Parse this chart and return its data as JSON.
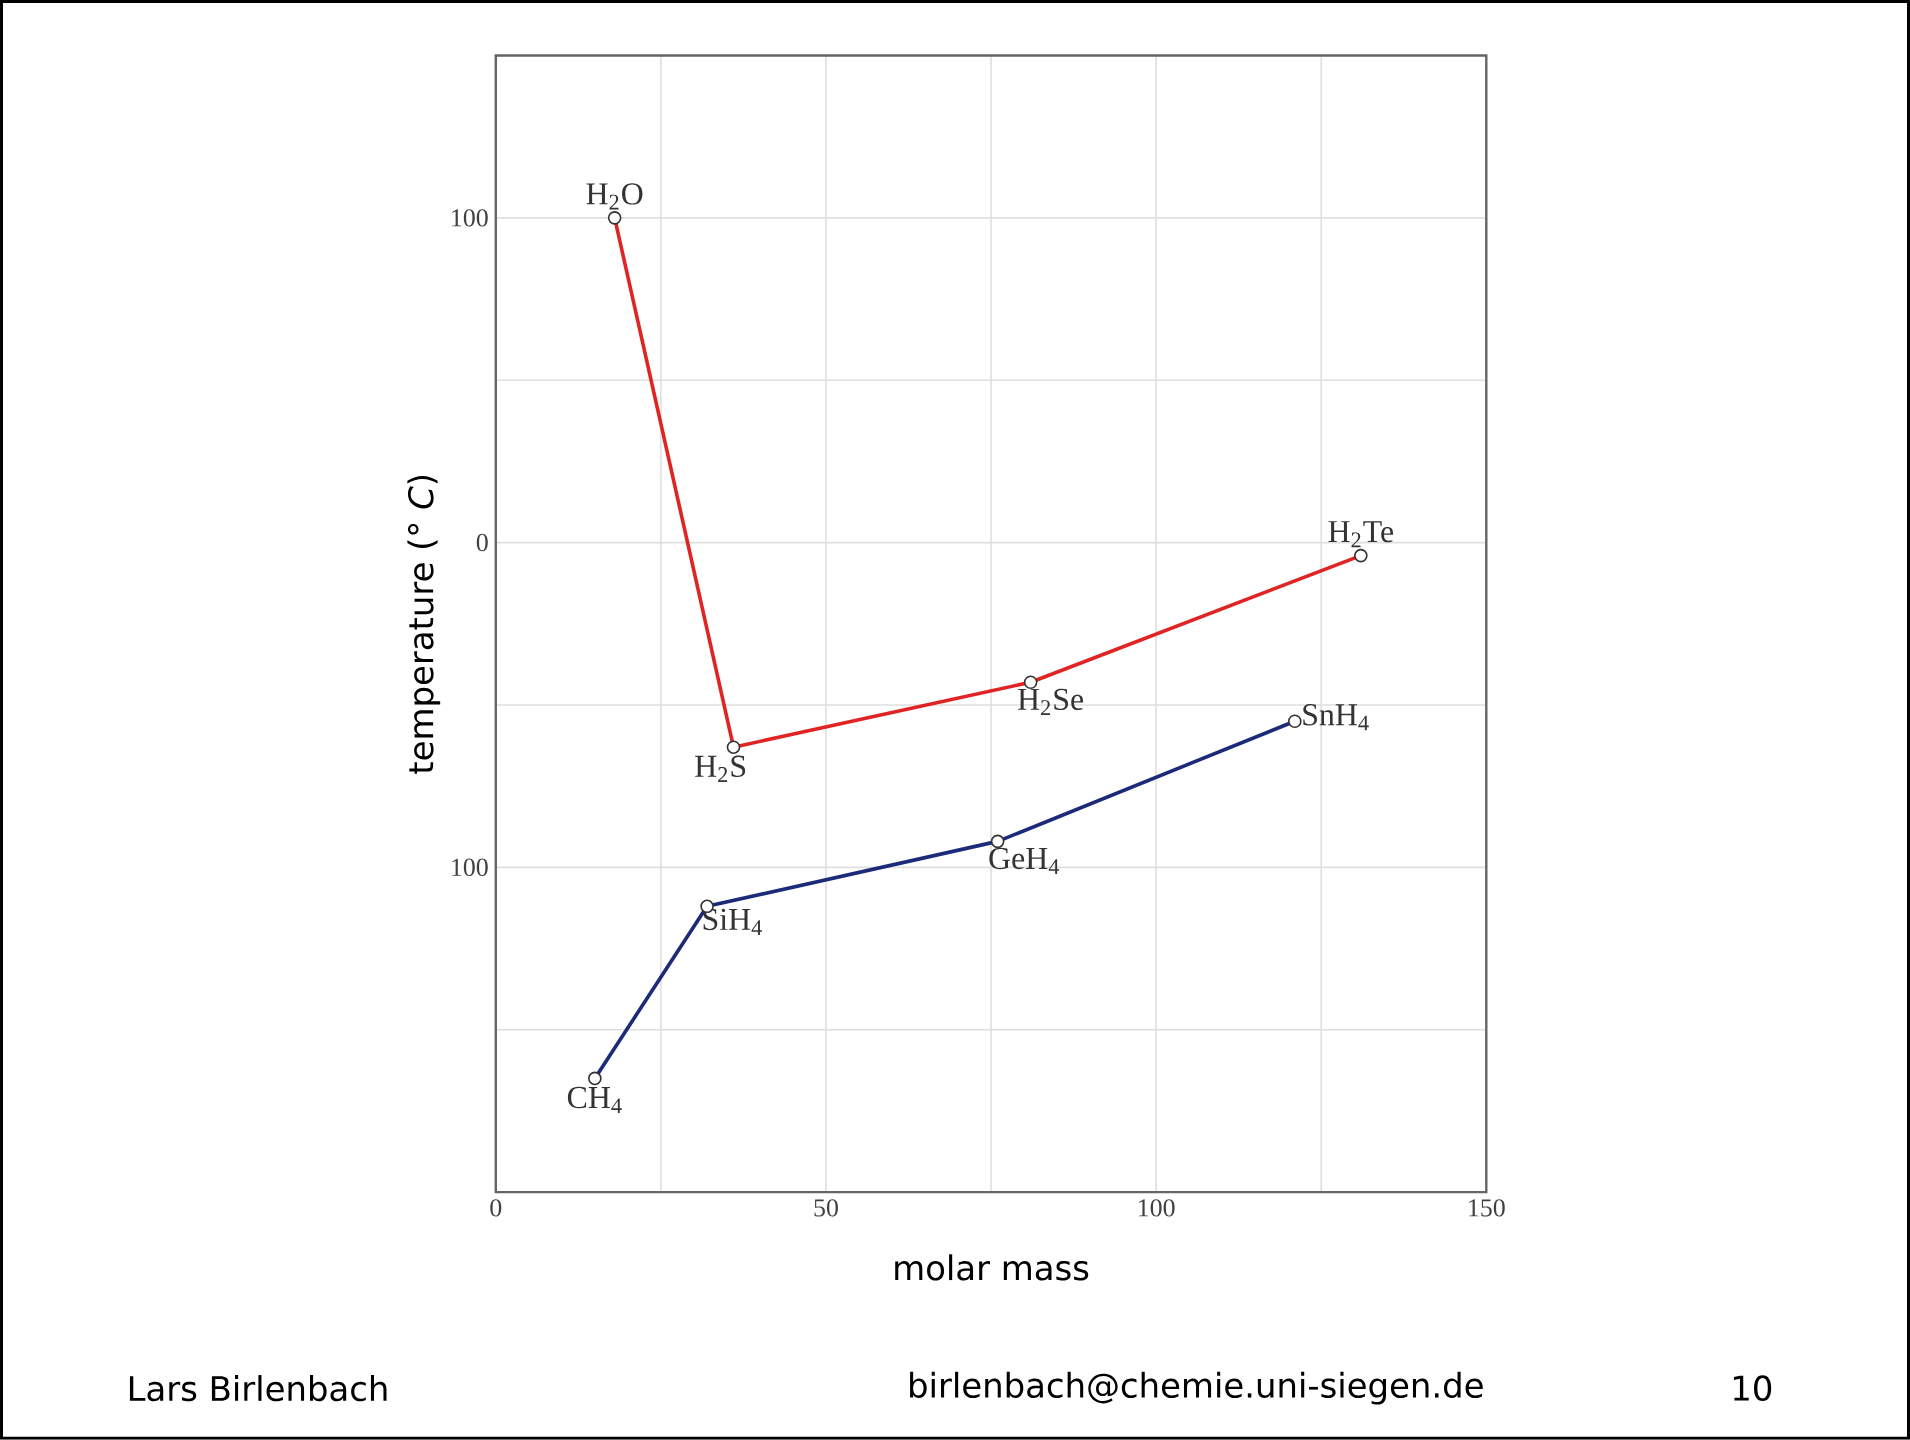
{
  "chart_data": {
    "type": "line",
    "xlabel": "molar mass",
    "ylabel": "temperature (°  *C*)",
    "xlim": [
      0,
      150
    ],
    "ylim": [
      -200,
      150
    ],
    "xticks": [
      0,
      {
        "value": 25,
        "label": null
      },
      50,
      {
        "value": 75,
        "label": null
      },
      100,
      {
        "value": 125,
        "label": null
      },
      150
    ],
    "yticks": [
      {
        "value": -150,
        "label": null
      },
      {
        "value": -100,
        "label": "100"
      },
      {
        "value": -50,
        "label": null
      },
      0,
      {
        "value": 50,
        "label": null
      },
      100
    ],
    "grid": true,
    "marker": "circle",
    "line_style": "solid",
    "series": [
      {
        "color": "#e02424",
        "x": [
          18,
          36,
          81,
          131
        ],
        "values": [
          100,
          -63,
          -43,
          -4
        ]
      },
      {
        "color": "#1c2a7a",
        "x": [
          15,
          32,
          76,
          121
        ],
        "values": [
          -165,
          -112,
          -92,
          -55
        ]
      }
    ],
    "annotations": [
      {
        "text": "H$_{2}$O",
        "x": 18,
        "y": 100
      },
      {
        "text": "H$_{2}$S",
        "x": 36,
        "y": -63
      },
      {
        "text": "H$_{2}$Se",
        "x": 81,
        "y": -43
      },
      {
        "text": "H$_{2}$Te",
        "x": 131,
        "y": -4
      },
      {
        "text": "CH$_{4}$",
        "x": 15,
        "y": -165
      },
      {
        "text": "SiH$_{4}$",
        "x": 32,
        "y": -112
      },
      {
        "text": "GeH$_{4}$",
        "x": 76,
        "y": -92
      },
      {
        "text": "SnH$_{4}$",
        "x": 121,
        "y": -55
      },
      "Lars Birlenbach",
      "birlenbach@chemie.uni-siegen.de",
      "10"
    ]
  }
}
